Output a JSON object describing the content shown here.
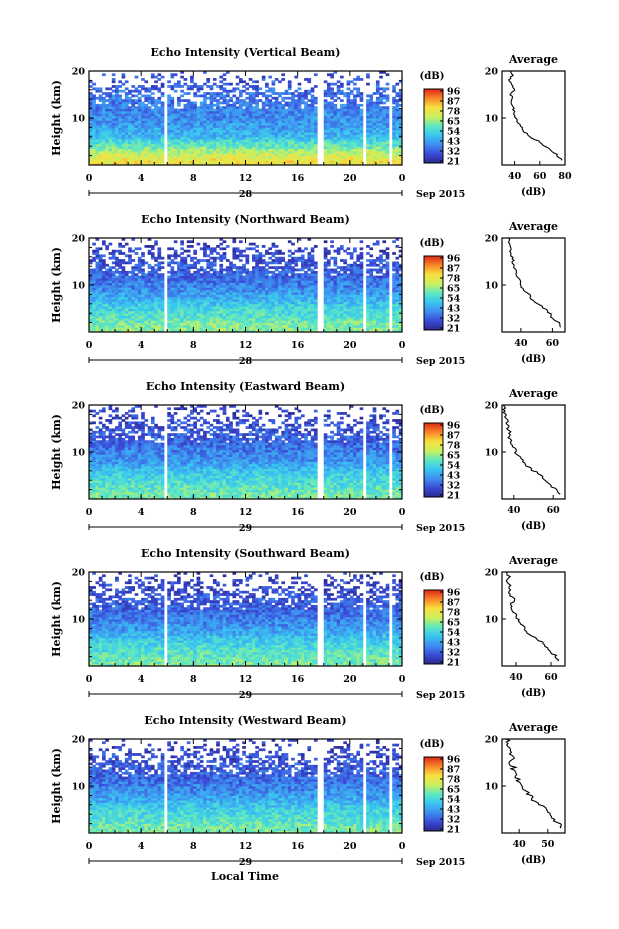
{
  "figure": {
    "colorbar_unit": "(dB)",
    "colorbar_ticks": [
      "96",
      "87",
      "78",
      "65",
      "54",
      "43",
      "32",
      "21"
    ],
    "date_label": "Sep 2015",
    "x_axis_label": "Local Time",
    "height_axis_label": "Height (km)",
    "average_title": "Average",
    "average_xlabel": "(dB)"
  },
  "chart_data": [
    {
      "type": "heatmap",
      "title": "Echo Intensity (Vertical Beam)",
      "x_ticks": [
        "0",
        "4",
        "8",
        "12",
        "16",
        "20",
        "0"
      ],
      "day_label": "28",
      "y_ticks": [
        "20",
        "10"
      ],
      "xlim": [
        0,
        24
      ],
      "ylim": [
        0,
        20
      ],
      "gaps_local_time": [
        [
          5.7,
          6.0
        ],
        [
          17.6,
          18.0
        ],
        [
          20.9,
          21.2
        ],
        [
          23.0,
          23.3
        ]
      ],
      "color_range_db": [
        21,
        96
      ],
      "profile_mean_db_by_height": [
        [
          1,
          75
        ],
        [
          2,
          70
        ],
        [
          3,
          66
        ],
        [
          4,
          58
        ],
        [
          5,
          55
        ],
        [
          6,
          47
        ],
        [
          7,
          45
        ],
        [
          8,
          43
        ],
        [
          9,
          41
        ],
        [
          10,
          40
        ],
        [
          11,
          39
        ],
        [
          12,
          38
        ],
        [
          13,
          37
        ],
        [
          14,
          36
        ],
        [
          15,
          35
        ],
        [
          16,
          34
        ],
        [
          17,
          32
        ],
        [
          18,
          31
        ],
        [
          19,
          30
        ],
        [
          20,
          30
        ]
      ],
      "average": {
        "x_ticks": [
          "40",
          "60",
          "80"
        ],
        "y_ticks": [
          "20",
          "10"
        ],
        "xlim": [
          30,
          80
        ],
        "profile": [
          [
            1,
            78
          ],
          [
            2,
            74
          ],
          [
            3,
            70
          ],
          [
            4,
            64
          ],
          [
            5,
            60
          ],
          [
            6,
            52
          ],
          [
            7,
            48
          ],
          [
            8,
            46
          ],
          [
            9,
            42
          ],
          [
            10,
            41
          ],
          [
            11,
            40
          ],
          [
            12,
            39
          ],
          [
            13,
            38
          ],
          [
            14,
            38
          ],
          [
            15,
            37
          ],
          [
            16,
            40
          ],
          [
            17,
            38
          ],
          [
            18,
            36
          ],
          [
            19,
            38
          ],
          [
            20,
            37
          ]
        ]
      }
    },
    {
      "type": "heatmap",
      "title": "Echo Intensity (Northward Beam)",
      "x_ticks": [
        "0",
        "4",
        "8",
        "12",
        "16",
        "20",
        "0"
      ],
      "day_label": "28",
      "y_ticks": [
        "20",
        "10"
      ],
      "xlim": [
        0,
        24
      ],
      "ylim": [
        0,
        20
      ],
      "gaps_local_time": [
        [
          5.7,
          6.0
        ],
        [
          17.6,
          18.0
        ],
        [
          20.9,
          21.2
        ],
        [
          23.0,
          23.3
        ]
      ],
      "color_range_db": [
        21,
        96
      ],
      "profile_mean_db_by_height": [
        [
          1,
          62
        ],
        [
          2,
          60
        ],
        [
          3,
          57
        ],
        [
          4,
          55
        ],
        [
          5,
          53
        ],
        [
          6,
          50
        ],
        [
          7,
          46
        ],
        [
          8,
          43
        ],
        [
          9,
          40
        ],
        [
          10,
          38
        ],
        [
          11,
          36
        ],
        [
          12,
          34
        ],
        [
          13,
          33
        ],
        [
          14,
          32
        ],
        [
          15,
          31
        ],
        [
          16,
          30
        ],
        [
          17,
          29
        ],
        [
          18,
          28
        ],
        [
          19,
          27
        ],
        [
          20,
          27
        ]
      ],
      "average": {
        "x_ticks": [
          "40",
          "60"
        ],
        "y_ticks": [
          "20",
          "10"
        ],
        "xlim": [
          28,
          68
        ],
        "profile": [
          [
            1,
            65
          ],
          [
            2,
            64
          ],
          [
            3,
            60
          ],
          [
            4,
            58
          ],
          [
            5,
            55
          ],
          [
            6,
            51
          ],
          [
            7,
            47
          ],
          [
            8,
            45
          ],
          [
            9,
            42
          ],
          [
            10,
            40
          ],
          [
            11,
            39
          ],
          [
            12,
            38
          ],
          [
            13,
            37
          ],
          [
            14,
            35
          ],
          [
            15,
            35
          ],
          [
            16,
            34
          ],
          [
            17,
            33
          ],
          [
            18,
            33
          ],
          [
            19,
            32
          ],
          [
            20,
            32
          ]
        ]
      }
    },
    {
      "type": "heatmap",
      "title": "Echo Intensity (Eastward Beam)",
      "x_ticks": [
        "0",
        "4",
        "8",
        "12",
        "16",
        "20",
        "0"
      ],
      "day_label": "29",
      "y_ticks": [
        "20",
        "10"
      ],
      "xlim": [
        0,
        24
      ],
      "ylim": [
        0,
        20
      ],
      "gaps_local_time": [
        [
          5.7,
          6.0
        ],
        [
          17.6,
          18.0
        ],
        [
          20.9,
          21.2
        ],
        [
          23.0,
          23.3
        ]
      ],
      "color_range_db": [
        21,
        96
      ],
      "profile_mean_db_by_height": [
        [
          1,
          60
        ],
        [
          2,
          58
        ],
        [
          3,
          56
        ],
        [
          4,
          54
        ],
        [
          5,
          52
        ],
        [
          6,
          49
        ],
        [
          7,
          45
        ],
        [
          8,
          42
        ],
        [
          9,
          40
        ],
        [
          10,
          38
        ],
        [
          11,
          36
        ],
        [
          12,
          34
        ],
        [
          13,
          33
        ],
        [
          14,
          32
        ],
        [
          15,
          31
        ],
        [
          16,
          30
        ],
        [
          17,
          29
        ],
        [
          18,
          28
        ],
        [
          19,
          27
        ],
        [
          20,
          27
        ]
      ],
      "average": {
        "x_ticks": [
          "40",
          "60"
        ],
        "y_ticks": [
          "20",
          "10"
        ],
        "xlim": [
          34,
          66
        ],
        "profile": [
          [
            1,
            63
          ],
          [
            2,
            62
          ],
          [
            3,
            58
          ],
          [
            4,
            56
          ],
          [
            5,
            54
          ],
          [
            6,
            50
          ],
          [
            7,
            47
          ],
          [
            8,
            45
          ],
          [
            9,
            43
          ],
          [
            10,
            41
          ],
          [
            11,
            40
          ],
          [
            12,
            39
          ],
          [
            13,
            38
          ],
          [
            14,
            38
          ],
          [
            15,
            37
          ],
          [
            16,
            37
          ],
          [
            17,
            36
          ],
          [
            18,
            36
          ],
          [
            19,
            35
          ],
          [
            20,
            35
          ]
        ]
      }
    },
    {
      "type": "heatmap",
      "title": "Echo Intensity (Southward Beam)",
      "x_ticks": [
        "0",
        "4",
        "8",
        "12",
        "16",
        "20",
        "0"
      ],
      "day_label": "29",
      "y_ticks": [
        "20",
        "10"
      ],
      "xlim": [
        0,
        24
      ],
      "ylim": [
        0,
        20
      ],
      "gaps_local_time": [
        [
          5.7,
          6.0
        ],
        [
          17.6,
          18.0
        ],
        [
          20.9,
          21.2
        ],
        [
          23.0,
          23.3
        ]
      ],
      "color_range_db": [
        21,
        96
      ],
      "profile_mean_db_by_height": [
        [
          1,
          60
        ],
        [
          2,
          58
        ],
        [
          3,
          56
        ],
        [
          4,
          54
        ],
        [
          5,
          52
        ],
        [
          6,
          49
        ],
        [
          7,
          45
        ],
        [
          8,
          42
        ],
        [
          9,
          40
        ],
        [
          10,
          38
        ],
        [
          11,
          36
        ],
        [
          12,
          34
        ],
        [
          13,
          33
        ],
        [
          14,
          32
        ],
        [
          15,
          31
        ],
        [
          16,
          30
        ],
        [
          17,
          29
        ],
        [
          18,
          28
        ],
        [
          19,
          27
        ],
        [
          20,
          27
        ]
      ],
      "average": {
        "x_ticks": [
          "40",
          "60"
        ],
        "y_ticks": [
          "20",
          "10"
        ],
        "xlim": [
          32,
          68
        ],
        "profile": [
          [
            1,
            65
          ],
          [
            2,
            63
          ],
          [
            3,
            60
          ],
          [
            4,
            57
          ],
          [
            5,
            55
          ],
          [
            6,
            51
          ],
          [
            7,
            47
          ],
          [
            8,
            45
          ],
          [
            9,
            43
          ],
          [
            10,
            41
          ],
          [
            11,
            40
          ],
          [
            12,
            38
          ],
          [
            13,
            37
          ],
          [
            14,
            39
          ],
          [
            15,
            37
          ],
          [
            16,
            36
          ],
          [
            17,
            37
          ],
          [
            18,
            35
          ],
          [
            19,
            36
          ],
          [
            20,
            35
          ]
        ]
      }
    },
    {
      "type": "heatmap",
      "title": "Echo Intensity (Westward Beam)",
      "x_ticks": [
        "0",
        "4",
        "8",
        "12",
        "16",
        "20",
        "0"
      ],
      "day_label": "29",
      "y_ticks": [
        "20",
        "10"
      ],
      "xlim": [
        0,
        24
      ],
      "ylim": [
        0,
        20
      ],
      "gaps_local_time": [
        [
          5.7,
          6.0
        ],
        [
          17.6,
          18.0
        ],
        [
          20.9,
          21.2
        ],
        [
          23.0,
          23.3
        ]
      ],
      "color_range_db": [
        21,
        96
      ],
      "profile_mean_db_by_height": [
        [
          1,
          60
        ],
        [
          2,
          58
        ],
        [
          3,
          56
        ],
        [
          4,
          54
        ],
        [
          5,
          52
        ],
        [
          6,
          49
        ],
        [
          7,
          45
        ],
        [
          8,
          42
        ],
        [
          9,
          40
        ],
        [
          10,
          38
        ],
        [
          11,
          36
        ],
        [
          12,
          34
        ],
        [
          13,
          33
        ],
        [
          14,
          32
        ],
        [
          15,
          31
        ],
        [
          16,
          30
        ],
        [
          17,
          29
        ],
        [
          18,
          28
        ],
        [
          19,
          27
        ],
        [
          20,
          27
        ]
      ],
      "average": {
        "x_ticks": [
          "40",
          "50"
        ],
        "y_ticks": [
          "20",
          "10"
        ],
        "xlim": [
          34,
          56
        ],
        "profile": [
          [
            1,
            55
          ],
          [
            2,
            54
          ],
          [
            3,
            52
          ],
          [
            4,
            51
          ],
          [
            5,
            50
          ],
          [
            6,
            47
          ],
          [
            7,
            45
          ],
          [
            8,
            44
          ],
          [
            9,
            42
          ],
          [
            10,
            41
          ],
          [
            11,
            40
          ],
          [
            12,
            39
          ],
          [
            13,
            38
          ],
          [
            14,
            38
          ],
          [
            15,
            37
          ],
          [
            16,
            38
          ],
          [
            17,
            37
          ],
          [
            18,
            36
          ],
          [
            19,
            36
          ],
          [
            20,
            36
          ]
        ]
      }
    }
  ]
}
